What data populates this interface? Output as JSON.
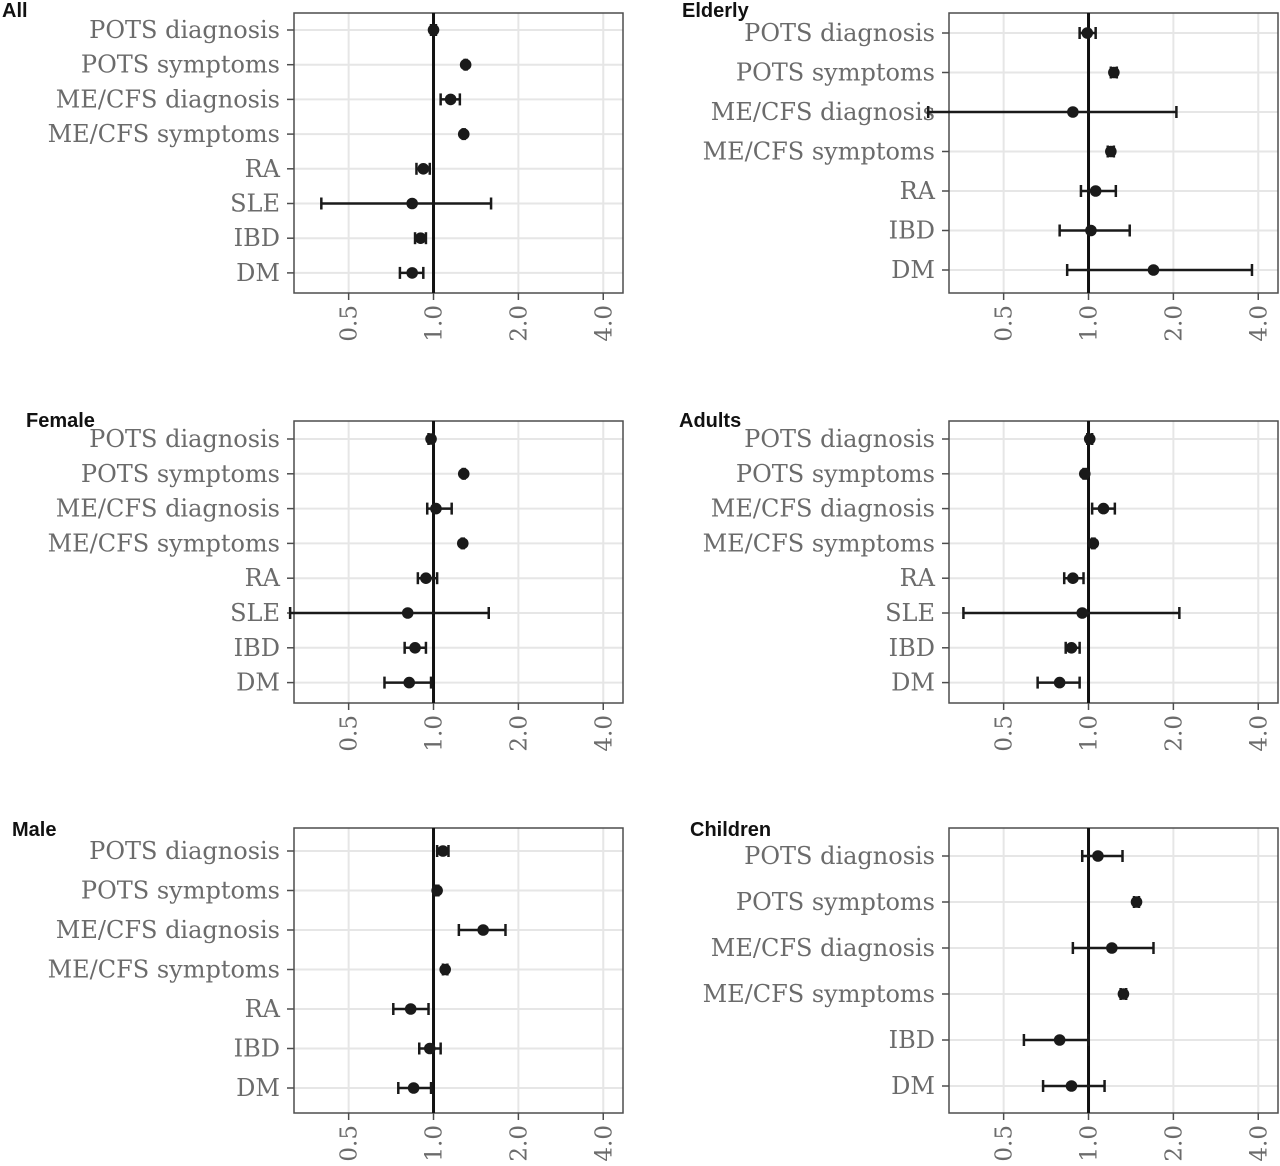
{
  "chart_data": [
    {
      "type": "forest",
      "title": "All",
      "x_scale": "log2",
      "x_ticks": [
        0.5,
        1.0,
        2.0,
        4.0
      ],
      "x_tick_labels": [
        "0.5",
        "1.0",
        "2.0",
        "4.0"
      ],
      "xlim": [
        0.32,
        4.7
      ],
      "reference_line": 1.0,
      "categories": [
        "POTS diagnosis",
        "POTS symptoms",
        "ME/CFS diagnosis",
        "ME/CFS symptoms",
        "RA",
        "SLE",
        "IBD",
        "DM"
      ],
      "estimates": [
        1.0,
        1.3,
        1.15,
        1.28,
        0.92,
        0.84,
        0.9,
        0.84
      ],
      "lower": [
        0.98,
        1.29,
        1.06,
        1.27,
        0.87,
        0.4,
        0.86,
        0.76
      ],
      "upper": [
        1.02,
        1.31,
        1.24,
        1.29,
        0.97,
        1.6,
        0.94,
        0.92
      ]
    },
    {
      "type": "forest",
      "title": "Elderly",
      "x_scale": "log2",
      "x_ticks": [
        0.5,
        1.0,
        2.0,
        4.0
      ],
      "x_tick_labels": [
        "0.5",
        "1.0",
        "2.0",
        "4.0"
      ],
      "xlim": [
        0.32,
        4.7
      ],
      "reference_line": 1.0,
      "categories": [
        "POTS diagnosis",
        "POTS symptoms",
        "ME/CFS diagnosis",
        "ME/CFS symptoms",
        "RA",
        "IBD",
        "DM"
      ],
      "estimates": [
        0.99,
        1.23,
        0.88,
        1.2,
        1.06,
        1.02,
        1.7
      ],
      "lower": [
        0.93,
        1.2,
        0.27,
        1.17,
        0.94,
        0.79,
        0.84
      ],
      "upper": [
        1.06,
        1.26,
        2.05,
        1.23,
        1.25,
        1.4,
        3.8
      ]
    },
    {
      "type": "forest",
      "title": "Female",
      "x_scale": "log2",
      "x_ticks": [
        0.5,
        1.0,
        2.0,
        4.0
      ],
      "x_tick_labels": [
        "0.5",
        "1.0",
        "2.0",
        "4.0"
      ],
      "xlim": [
        0.32,
        4.7
      ],
      "reference_line": 1.0,
      "categories": [
        "POTS diagnosis",
        "POTS symptoms",
        "ME/CFS diagnosis",
        "ME/CFS symptoms",
        "RA",
        "SLE",
        "IBD",
        "DM"
      ],
      "estimates": [
        0.98,
        1.28,
        1.02,
        1.27,
        0.94,
        0.81,
        0.86,
        0.82
      ],
      "lower": [
        0.96,
        1.27,
        0.95,
        1.26,
        0.88,
        0.31,
        0.79,
        0.67
      ],
      "upper": [
        1.0,
        1.29,
        1.16,
        1.28,
        1.03,
        1.57,
        0.94,
        0.98
      ]
    },
    {
      "type": "forest",
      "title": "Adults",
      "x_scale": "log2",
      "x_ticks": [
        0.5,
        1.0,
        2.0,
        4.0
      ],
      "x_tick_labels": [
        "0.5",
        "1.0",
        "2.0",
        "4.0"
      ],
      "xlim": [
        0.32,
        4.7
      ],
      "reference_line": 1.0,
      "categories": [
        "POTS diagnosis",
        "POTS symptoms",
        "ME/CFS diagnosis",
        "ME/CFS symptoms",
        "RA",
        "SLE",
        "IBD",
        "DM"
      ],
      "estimates": [
        1.01,
        0.97,
        1.13,
        1.04,
        0.88,
        0.95,
        0.87,
        0.79
      ],
      "lower": [
        0.99,
        0.96,
        1.03,
        1.03,
        0.82,
        0.36,
        0.83,
        0.66
      ],
      "upper": [
        1.03,
        0.98,
        1.24,
        1.05,
        0.96,
        2.1,
        0.93,
        0.93
      ]
    },
    {
      "type": "forest",
      "title": "Male",
      "x_scale": "log2",
      "x_ticks": [
        0.5,
        1.0,
        2.0,
        4.0
      ],
      "x_tick_labels": [
        "0.5",
        "1.0",
        "2.0",
        "4.0"
      ],
      "xlim": [
        0.32,
        4.7
      ],
      "reference_line": 1.0,
      "categories": [
        "POTS diagnosis",
        "POTS symptoms",
        "ME/CFS diagnosis",
        "ME/CFS symptoms",
        "RA",
        "IBD",
        "DM"
      ],
      "estimates": [
        1.08,
        1.03,
        1.5,
        1.1,
        0.83,
        0.97,
        0.85
      ],
      "lower": [
        1.03,
        1.02,
        1.23,
        1.08,
        0.72,
        0.89,
        0.75
      ],
      "upper": [
        1.13,
        1.04,
        1.8,
        1.12,
        0.96,
        1.06,
        0.98
      ]
    },
    {
      "type": "forest",
      "title": "Children",
      "x_scale": "log2",
      "x_ticks": [
        0.5,
        1.0,
        2.0,
        4.0
      ],
      "x_tick_labels": [
        "0.5",
        "1.0",
        "2.0",
        "4.0"
      ],
      "xlim": [
        0.32,
        4.7
      ],
      "reference_line": 1.0,
      "categories": [
        "POTS diagnosis",
        "POTS symptoms",
        "ME/CFS diagnosis",
        "ME/CFS symptoms",
        "IBD",
        "DM"
      ],
      "estimates": [
        1.08,
        1.48,
        1.21,
        1.33,
        0.79,
        0.87
      ],
      "lower": [
        0.95,
        1.45,
        0.88,
        1.3,
        0.59,
        0.69
      ],
      "upper": [
        1.32,
        1.51,
        1.7,
        1.36,
        1.0,
        1.14
      ]
    }
  ]
}
